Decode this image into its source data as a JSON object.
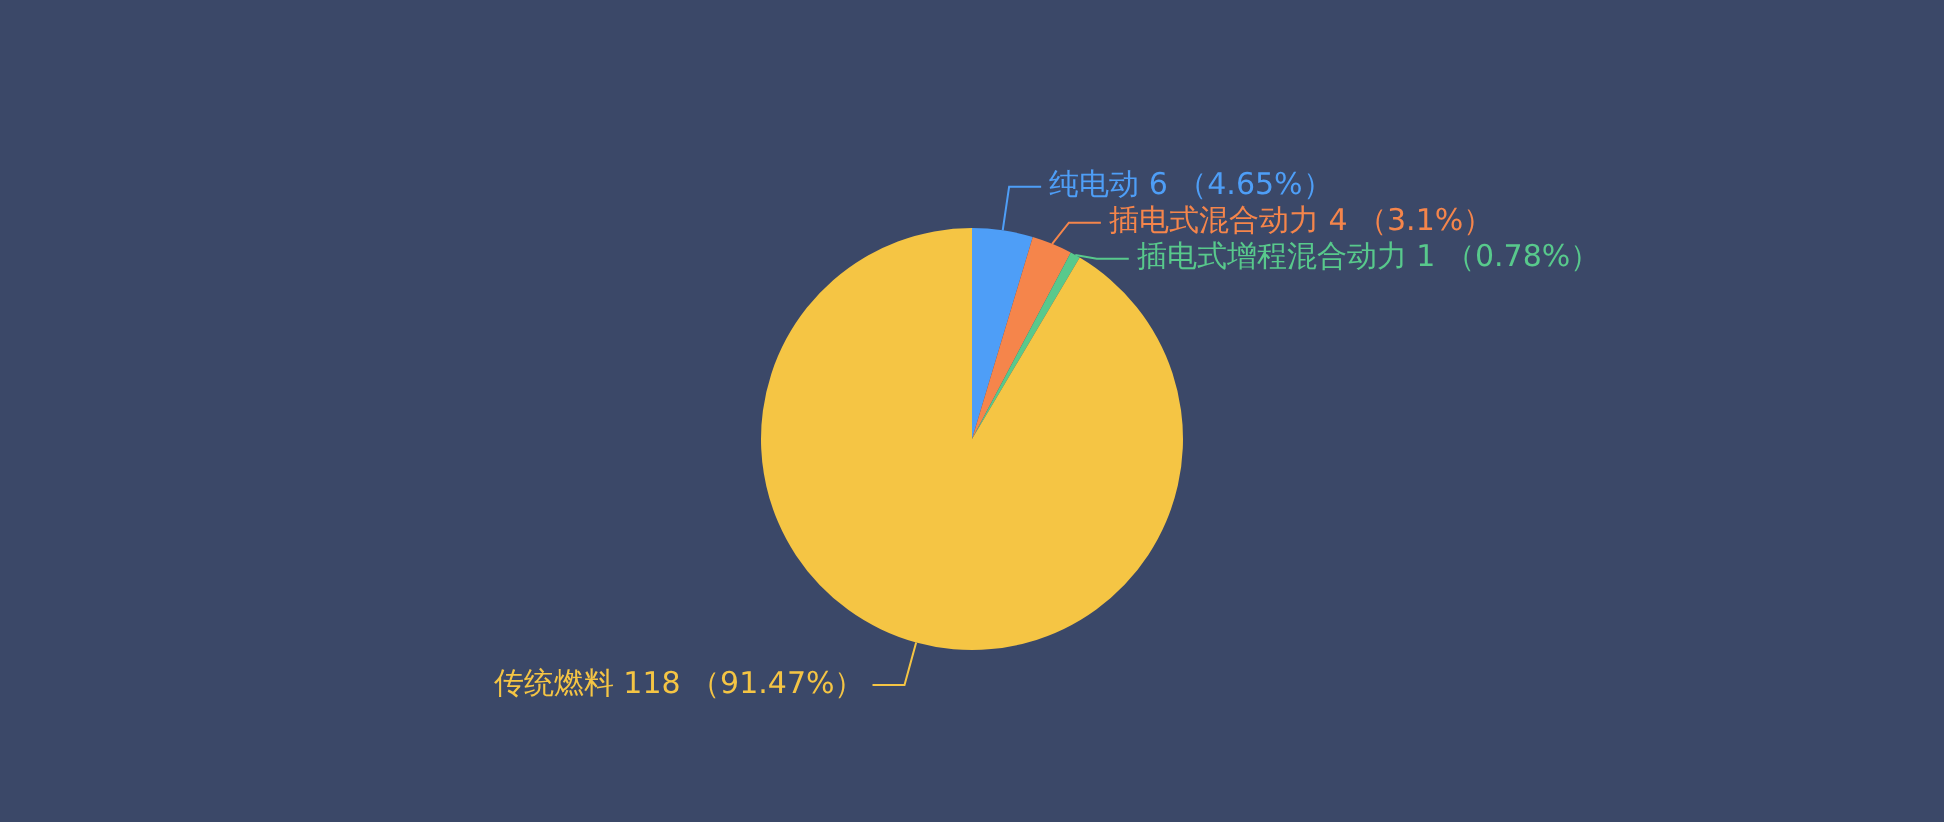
{
  "chart_data": {
    "type": "pie",
    "categories": [
      "纯电动",
      "插电式混合动力",
      "插电式增程混合动力",
      "传统燃料"
    ],
    "values": [
      6,
      4,
      1,
      118
    ],
    "colors": [
      "#4e9ef7",
      "#f5854b",
      "#58c98c",
      "#f5c544"
    ],
    "value_labels": [
      "6 （4.65%）",
      "4 （3.1%）",
      "1 （0.78%）",
      "118 （91.47%）"
    ],
    "legend": false
  }
}
